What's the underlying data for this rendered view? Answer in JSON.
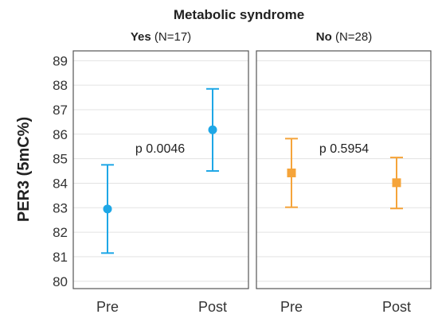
{
  "chart_data": {
    "type": "errorbar",
    "title": "Metabolic syndrome",
    "ylabel": "PER3 (5mC%)",
    "ylim": [
      79.7,
      89.4
    ],
    "yticks": [
      80,
      81,
      82,
      83,
      84,
      85,
      86,
      87,
      88,
      89
    ],
    "categories": [
      "Pre",
      "Post"
    ],
    "grid": "horizontal",
    "panels": [
      {
        "label_bold": "Yes",
        "label_rest": "(N=17)",
        "color": "#1ea7e6",
        "marker": "circle",
        "points": [
          {
            "x": "Pre",
            "y": 82.95,
            "low": 81.15,
            "high": 84.75
          },
          {
            "x": "Post",
            "y": 86.18,
            "low": 84.5,
            "high": 87.85
          }
        ],
        "annotation": "p 0.0046"
      },
      {
        "label_bold": "No",
        "label_rest": "(N=28)",
        "color": "#f5a43a",
        "marker": "square",
        "points": [
          {
            "x": "Pre",
            "y": 84.42,
            "low": 83.02,
            "high": 85.82
          },
          {
            "x": "Post",
            "y": 84.02,
            "low": 82.97,
            "high": 85.05
          }
        ],
        "annotation": "p 0.5954"
      }
    ]
  }
}
